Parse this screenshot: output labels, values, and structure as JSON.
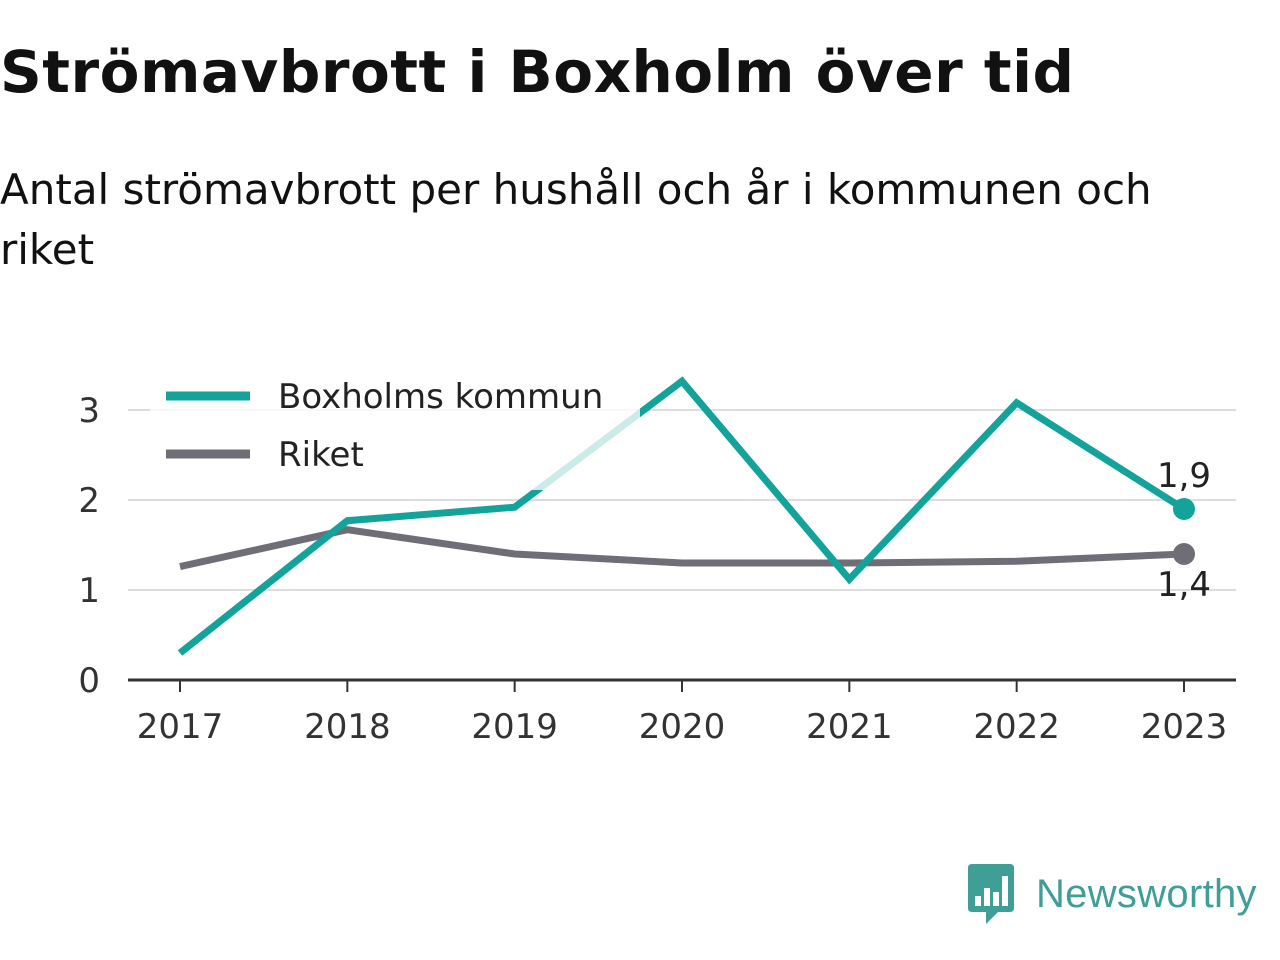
{
  "header": {
    "title": "Strömavbrott i Boxholm över tid",
    "subtitle": "Antal strömavbrott per hushåll och år i kommunen och riket"
  },
  "chart_data": {
    "type": "line",
    "x": [
      "2017",
      "2018",
      "2019",
      "2020",
      "2021",
      "2022",
      "2023"
    ],
    "series": [
      {
        "name": "Boxholms kommun",
        "color": "#14a39b",
        "values": [
          0.3,
          1.77,
          1.92,
          3.32,
          1.12,
          3.08,
          1.9
        ],
        "end_label": "1,9"
      },
      {
        "name": "Riket",
        "color": "#6f6e77",
        "values": [
          1.26,
          1.67,
          1.4,
          1.3,
          1.3,
          1.32,
          1.4
        ],
        "end_label": "1,4"
      }
    ],
    "yticks": [
      "0",
      "1",
      "2",
      "3"
    ],
    "ylim": [
      0,
      3.5
    ],
    "grid": true,
    "legend": "top-left"
  },
  "brand": {
    "name": "Newsworthy",
    "color": "#3f9e95"
  }
}
